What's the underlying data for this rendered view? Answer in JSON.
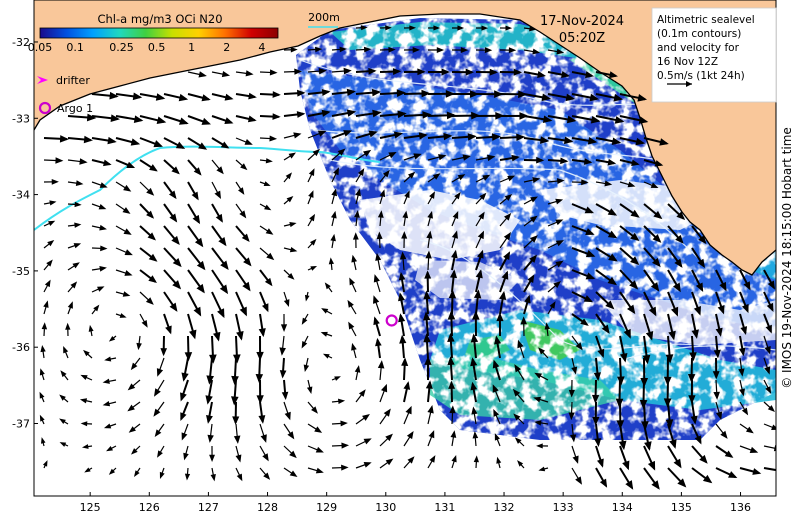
{
  "colorbar": {
    "title": "Chl-a mg/m3 OCi N20",
    "tick_labels": [
      "0.05",
      "0.1",
      "0.25",
      "0.5",
      "1",
      "2",
      "4"
    ],
    "tick_values": [
      0.05,
      0.1,
      0.25,
      0.5,
      1,
      2,
      4
    ],
    "colors": [
      "#1a0a8c",
      "#0050e0",
      "#00a0ff",
      "#20d8c0",
      "#40d040",
      "#c8e000",
      "#ffd000",
      "#ff7000",
      "#d00000",
      "#8c0000"
    ]
  },
  "date_line": "17-Nov-2024",
  "time_line": "05:20Z",
  "depth_contour_label": "200m",
  "altimetry_note": {
    "lines": [
      "Altimetric sealevel",
      "(0.1m contours)",
      "and velocity for",
      "16 Nov 12Z",
      "0.5m/s (1kt 24h)"
    ]
  },
  "legend": {
    "drifter_label": "drifter",
    "argo_label": "Argo 1"
  },
  "axes": {
    "x_ticks": [
      "125",
      "126",
      "127",
      "128",
      "129",
      "130",
      "131",
      "132",
      "133",
      "134",
      "135",
      "136"
    ],
    "x_values": [
      125,
      126,
      127,
      128,
      129,
      130,
      131,
      132,
      133,
      134,
      135,
      136
    ],
    "y_ticks": [
      "-32",
      "-33",
      "-34",
      "-35",
      "-36",
      "-37"
    ],
    "y_values": [
      -32,
      -33,
      -34,
      -35,
      -36,
      -37
    ],
    "lon_range": [
      124.05,
      136.6
    ],
    "lat_range": [
      -37.95,
      -31.45
    ]
  },
  "argo_float": {
    "lon": 130.1,
    "lat": -35.65
  },
  "credit": "© IMOS 19-Nov-2024 18:15:00 Hobart time",
  "colors": {
    "land": "#f9c79a",
    "drifter": "#ff00ff",
    "argo": "#cc00cc",
    "track": "#40e0f0"
  }
}
